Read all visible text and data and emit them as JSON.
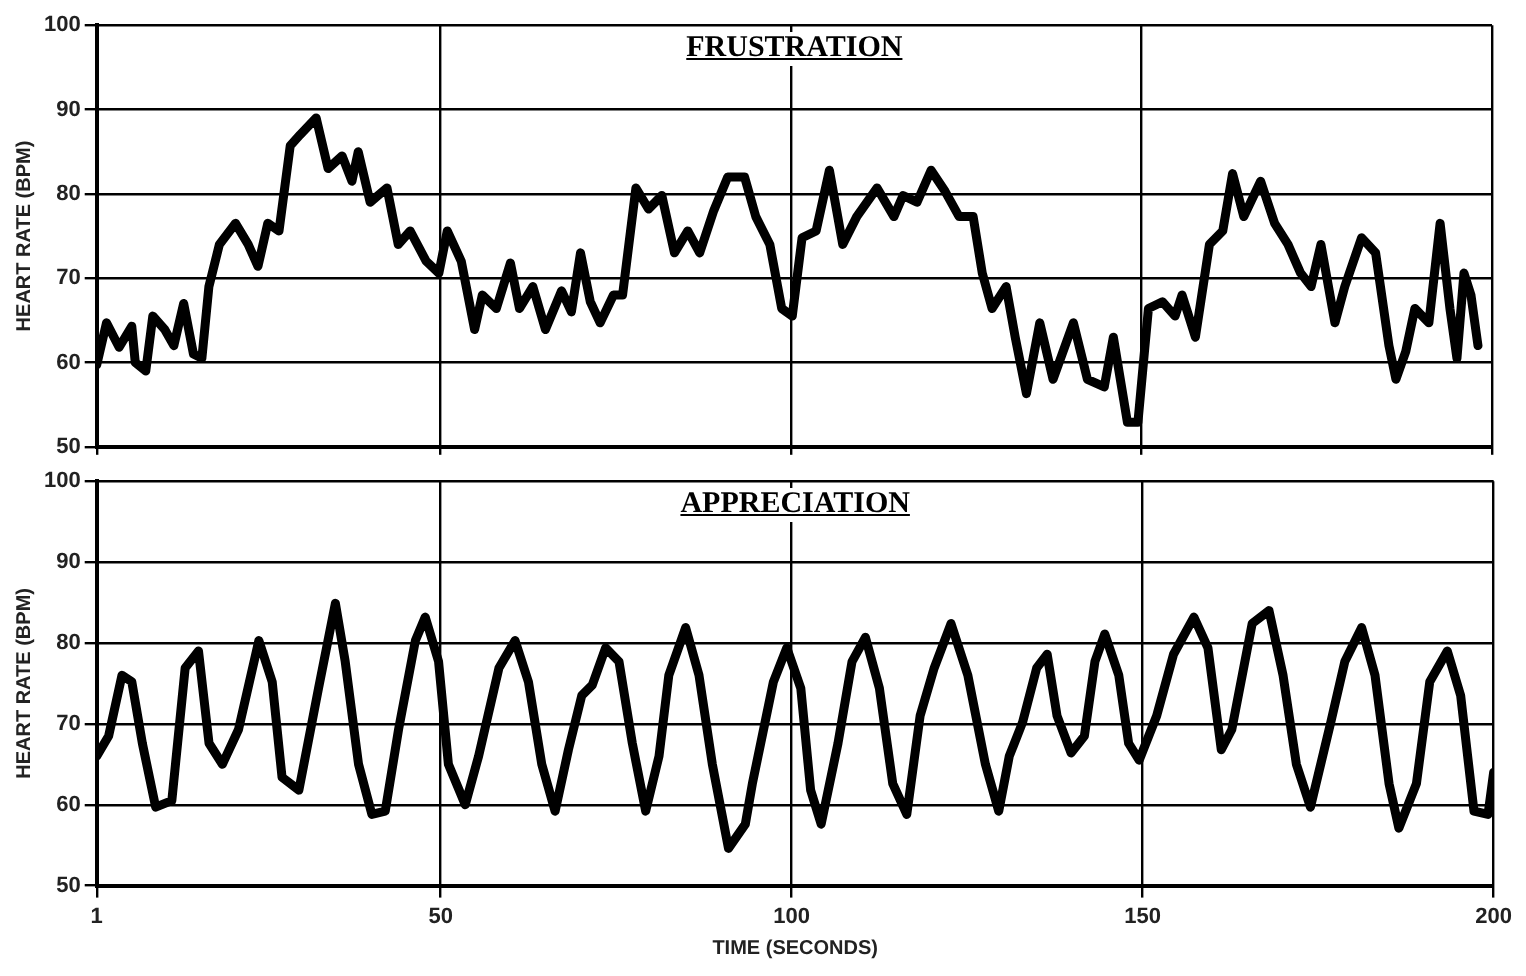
{
  "chart_data": [
    {
      "type": "line",
      "title": "FRUSTRATION",
      "ylabel": "HEART RATE (BPM)",
      "xlim": [
        1,
        200
      ],
      "xticks": [
        1,
        50,
        100,
        150,
        200
      ],
      "ylim": [
        50,
        100
      ],
      "yticks": [
        50,
        60,
        70,
        80,
        90,
        100
      ],
      "grid": true,
      "tick_labels": "y",
      "marker": "none",
      "line_style": "solid",
      "x": [
        1,
        2.4,
        4.2,
        6,
        6.5,
        8,
        9,
        10.7,
        12,
        13.4,
        14.8,
        16,
        17,
        18.5,
        20.8,
        22.6,
        24,
        25.4,
        27,
        28.6,
        30,
        32.3,
        34,
        36,
        37.4,
        38.3,
        40,
        42.4,
        44,
        45.7,
        48,
        49.8,
        51,
        53,
        54.9,
        56,
        58,
        60,
        61.3,
        63.2,
        65,
        67.3,
        68.7,
        70,
        71.4,
        72.8,
        74.7,
        76,
        77.9,
        79.7,
        81.6,
        83.4,
        85.3,
        87,
        89,
        91,
        93.4,
        95,
        97,
        98.7,
        100.2,
        101.6,
        103.6,
        105.5,
        107.4,
        109.4,
        112.3,
        114.7,
        116,
        118,
        120,
        122,
        124,
        126,
        127.3,
        128.7,
        130.7,
        132,
        133.6,
        135.5,
        137.4,
        140.3,
        142.3,
        144.7,
        146,
        148,
        149.5,
        151,
        153,
        154.8,
        155.8,
        157.7,
        159.7,
        161.6,
        163,
        164.6,
        167,
        169,
        170.9,
        172.7,
        174.2,
        175.6,
        177.6,
        179,
        181.4,
        183.4,
        185.3,
        186.3,
        187.7,
        189,
        191,
        192.6,
        194,
        195,
        196,
        197,
        198
      ],
      "series": [
        {
          "color": "#000000",
          "values": [
            59.7,
            64.7,
            61.8,
            64.3,
            60,
            59,
            65.5,
            63.9,
            62,
            67,
            61,
            60.5,
            69,
            74,
            76.5,
            74,
            71.4,
            76.5,
            75.6,
            85.7,
            87,
            89,
            83,
            84.5,
            81.5,
            85,
            79,
            80.7,
            74,
            75.6,
            72,
            70.6,
            75.6,
            72,
            63.9,
            68,
            66.4,
            71.8,
            66.4,
            69,
            63.9,
            68.5,
            66,
            73,
            67.2,
            64.7,
            68,
            68,
            80.7,
            78.2,
            79.8,
            73,
            75.6,
            73,
            78,
            82,
            82,
            77.3,
            74,
            66.4,
            65.5,
            74.8,
            75.6,
            82.8,
            74,
            77.3,
            80.7,
            77.3,
            79.8,
            79,
            82.8,
            80.3,
            77.3,
            77.3,
            70.6,
            66.4,
            69,
            63,
            56.3,
            64.7,
            58,
            64.7,
            58,
            57.1,
            63,
            52.9,
            52.9,
            66.4,
            67.2,
            65.5,
            68,
            63,
            74,
            75.6,
            82.4,
            77.3,
            81.5,
            76.5,
            74,
            70.6,
            69,
            74,
            64.7,
            69,
            74.8,
            73,
            62,
            58,
            61.3,
            66.4,
            64.7,
            76.5,
            66.4,
            60.5,
            70.6,
            68,
            62
          ]
        }
      ]
    },
    {
      "type": "line",
      "title": "APPRECIATION",
      "xlabel": "TIME (SECONDS)",
      "ylabel": "HEART RATE (BPM)",
      "xlim": [
        1,
        200
      ],
      "xticks": [
        1,
        50,
        100,
        150,
        200
      ],
      "ylim": [
        50,
        100
      ],
      "yticks": [
        50,
        60,
        70,
        80,
        90,
        100
      ],
      "grid": true,
      "marker": "none",
      "line_style": "solid",
      "x": [
        1,
        2.7,
        4.6,
        6,
        7.5,
        9.4,
        11.7,
        13.6,
        15.5,
        17,
        18.9,
        21.2,
        24.1,
        26,
        27.4,
        29.8,
        32.6,
        35,
        36.4,
        38.3,
        40.2,
        42.1,
        44,
        46.4,
        47.8,
        49.7,
        51.1,
        53.5,
        55.4,
        58.3,
        60.6,
        62.5,
        64.4,
        66.3,
        68.2,
        70.1,
        71.6,
        73.5,
        75.4,
        77.3,
        79.2,
        81.1,
        82.5,
        84.9,
        86.8,
        88.7,
        91,
        93.4,
        94.4,
        97.4,
        99.3,
        101.3,
        102.7,
        104.2,
        106.6,
        108.6,
        110.5,
        112.5,
        114.4,
        116.4,
        118.3,
        120.3,
        122.7,
        125.1,
        127.6,
        129.5,
        131,
        132.9,
        134.9,
        136.4,
        137.8,
        139.8,
        141.7,
        143.2,
        144.6,
        146.6,
        148,
        149.5,
        152,
        154.4,
        157.3,
        159.3,
        161.2,
        162.7,
        165.6,
        168,
        170,
        171.9,
        173.9,
        176.8,
        178.8,
        181.2,
        183.1,
        185.1,
        186.5,
        189,
        190.9,
        193.4,
        195.3,
        197.2,
        199.2,
        200
      ],
      "series": [
        {
          "color": "#000000",
          "values": [
            66,
            68.5,
            76,
            75.2,
            67.6,
            59.7,
            60.5,
            76.9,
            79,
            67.6,
            65,
            69.3,
            80.3,
            75.2,
            63.4,
            61.8,
            74.4,
            84.9,
            77.7,
            65,
            58.8,
            59.2,
            69.3,
            80.3,
            83.2,
            77.7,
            65,
            60,
            66,
            76.9,
            80.3,
            75.2,
            65,
            59.2,
            66.8,
            73.5,
            74.8,
            79.4,
            77.7,
            67.6,
            59.2,
            66,
            76,
            81.9,
            76,
            65,
            54.6,
            57.6,
            62.6,
            75.2,
            79.4,
            74.4,
            61.8,
            57.6,
            67.6,
            77.7,
            80.7,
            74.4,
            62.6,
            58.8,
            71,
            76.9,
            82.4,
            76,
            65,
            59.2,
            66,
            70.2,
            76.9,
            78.6,
            71,
            66.4,
            68.5,
            77.7,
            81.1,
            76,
            67.6,
            65.5,
            71,
            78.6,
            83.2,
            79.4,
            66.8,
            69.3,
            82.4,
            84,
            76,
            65,
            59.7,
            70.2,
            77.7,
            81.9,
            76,
            62.6,
            57.1,
            62.6,
            75.2,
            79,
            73.5,
            59.2,
            58.8,
            64
          ]
        }
      ]
    }
  ]
}
